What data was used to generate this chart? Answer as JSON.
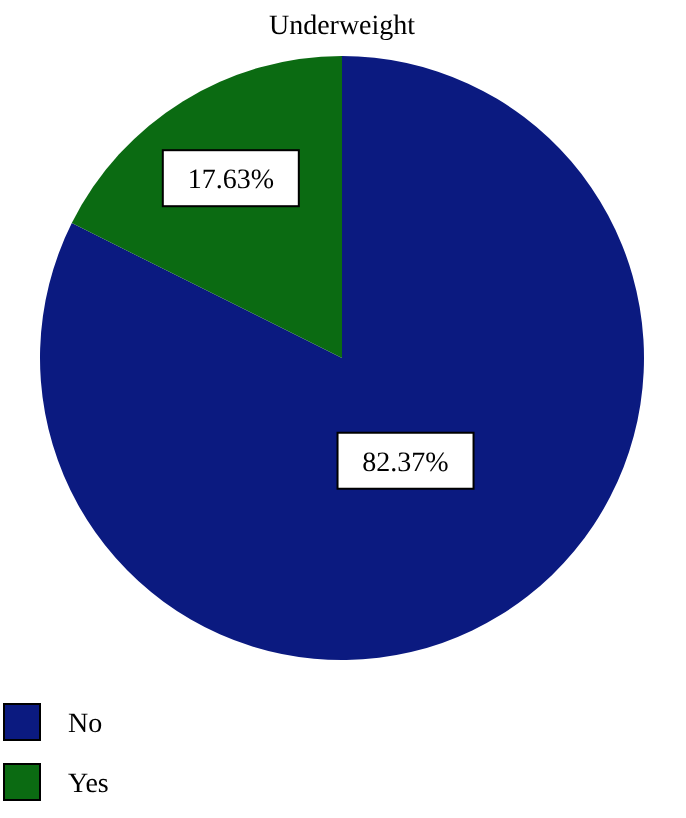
{
  "chart_data": {
    "type": "pie",
    "title": "Underweight",
    "categories": [
      "No",
      "Yes"
    ],
    "values": [
      82.37,
      17.63
    ],
    "colors": [
      "#0b1a80",
      "#0b6b12"
    ],
    "value_labels": [
      "82.37%",
      "17.63%"
    ],
    "legend": "bottom left"
  }
}
